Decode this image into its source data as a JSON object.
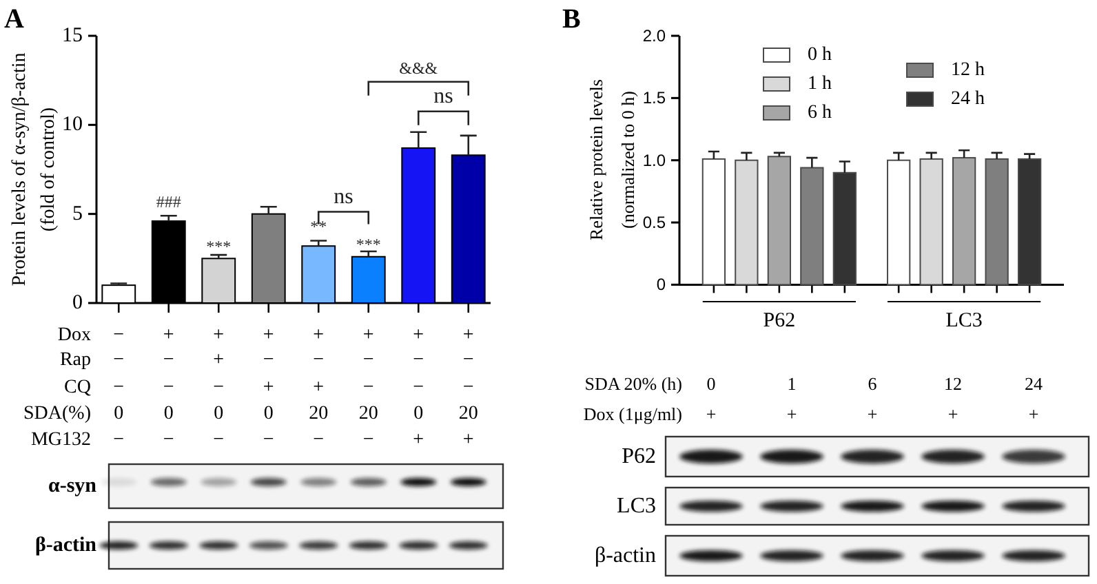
{
  "chart_data": [
    {
      "type": "bar",
      "title": "A",
      "ylabel": "Protein levels of α-syn/β-actin\n(fold of control)",
      "categories": [
        null,
        null,
        null,
        null,
        null,
        null,
        null,
        null
      ],
      "values": [
        1.0,
        4.6,
        2.5,
        5.0,
        3.2,
        2.6,
        8.7,
        8.3
      ],
      "colors": [
        "#ffffff",
        "#000000",
        "#d3d3d3",
        "#7f7f7f",
        "#78b8ff",
        "#0a80ff",
        "#1414f5",
        "#0000a8"
      ],
      "errors": [
        0.1,
        0.3,
        0.2,
        0.4,
        0.3,
        0.3,
        0.9,
        1.1
      ],
      "ylim": [
        0,
        15
      ],
      "yticks": [
        0,
        5,
        10,
        15
      ],
      "annotations": [
        "###",
        "***",
        "**",
        "***",
        "ns",
        "ns",
        "&&&",
        "Dox − + + + + + + +",
        "Rap − − + − − − − −",
        "CQ − − − + + − − −",
        "SDA(%) 0 0 0 0 20 20 0 20",
        "MG132 − − − − − − + +",
        "α-syn",
        "β-actin"
      ]
    },
    {
      "type": "bar",
      "title": "B",
      "ylabel": "Relative protein levels\n(normalized to 0 h)",
      "categories": [
        "P62",
        "LC3"
      ],
      "series": [
        {
          "name": "0 h",
          "color": "#ffffff",
          "values": [
            1.01,
            1.0
          ],
          "errors": [
            0.06,
            0.06
          ]
        },
        {
          "name": "1 h",
          "color": "#d9d9d9",
          "values": [
            1.0,
            1.01
          ],
          "errors": [
            0.06,
            0.05
          ]
        },
        {
          "name": "6 h",
          "color": "#a6a6a6",
          "values": [
            1.03,
            1.02
          ],
          "errors": [
            0.03,
            0.06
          ]
        },
        {
          "name": "12 h",
          "color": "#7f7f7f",
          "values": [
            0.94,
            1.01
          ],
          "errors": [
            0.08,
            0.05
          ]
        },
        {
          "name": "24 h",
          "color": "#333333",
          "values": [
            0.9,
            1.01
          ],
          "errors": [
            0.09,
            0.04
          ]
        }
      ],
      "ylim": [
        0,
        2
      ],
      "yticks": [
        0,
        0.5,
        {
          "value": 1,
          "label": "1.0"
        },
        1.5,
        {
          "value": 2,
          "label": "2.0"
        }
      ],
      "legend": "top",
      "annotations": [
        "SDA 20% (h) 0 1 6 12 24",
        "Dox (1μg/ml) + + + + +",
        "P62",
        "LC3",
        "β-actin"
      ]
    }
  ]
}
